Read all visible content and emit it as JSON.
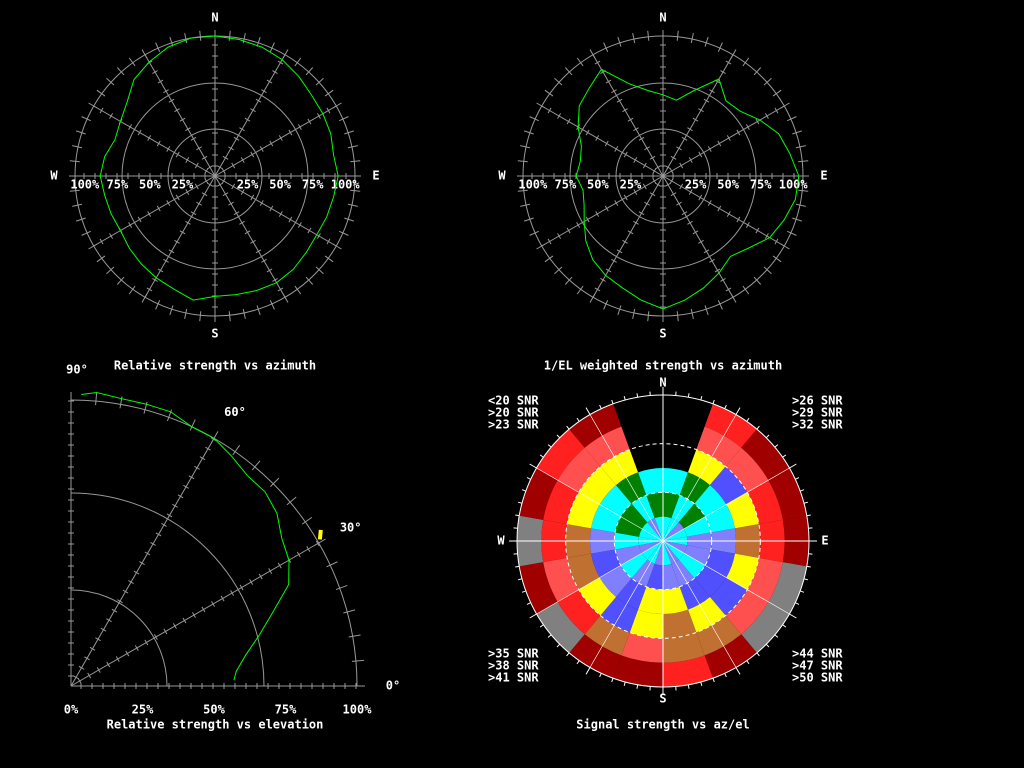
{
  "chart_data": [
    {
      "type": "polar",
      "title": "Relative strength vs azimuth",
      "direction_labels": [
        "N",
        "E",
        "S",
        "W"
      ],
      "rticks": [
        {
          "value": 25,
          "label": "25%"
        },
        {
          "value": 50,
          "label": "50%"
        },
        {
          "value": 75,
          "label": "75%"
        },
        {
          "value": 100,
          "label": "100%"
        }
      ],
      "rlim": [
        0,
        100
      ],
      "color": "#00ff00",
      "x": [
        0,
        10,
        20,
        30,
        40,
        50,
        60,
        70,
        80,
        90,
        100,
        110,
        120,
        130,
        140,
        150,
        160,
        170,
        180,
        190,
        200,
        210,
        220,
        230,
        240,
        250,
        260,
        270,
        280,
        290,
        300,
        310,
        320,
        330,
        340,
        350
      ],
      "values": [
        100,
        99,
        98,
        96,
        93,
        90,
        89,
        88,
        86,
        88,
        86,
        85,
        84,
        85,
        87,
        88,
        87,
        86,
        86,
        90,
        86,
        84,
        82,
        80,
        78,
        79,
        80,
        82,
        80,
        76,
        78,
        82,
        90,
        94,
        98,
        100
      ]
    },
    {
      "type": "polar",
      "title": "1/EL weighted strength vs azimuth",
      "direction_labels": [
        "N",
        "E",
        "S",
        "W"
      ],
      "rticks": [
        {
          "value": 25,
          "label": "25%"
        },
        {
          "value": 50,
          "label": "50%"
        },
        {
          "value": 75,
          "label": "75%"
        },
        {
          "value": 100,
          "label": "100%"
        }
      ],
      "rlim": [
        0,
        100
      ],
      "color": "#00ff00",
      "x": [
        0,
        10,
        20,
        30,
        40,
        50,
        60,
        70,
        80,
        90,
        100,
        110,
        120,
        130,
        140,
        150,
        160,
        170,
        180,
        190,
        200,
        210,
        220,
        230,
        240,
        250,
        260,
        270,
        280,
        290,
        300,
        310,
        320,
        330,
        340,
        350
      ],
      "values": [
        58,
        55,
        65,
        80,
        70,
        72,
        80,
        88,
        92,
        97,
        96,
        92,
        88,
        80,
        75,
        80,
        85,
        90,
        95,
        90,
        85,
        82,
        78,
        72,
        65,
        60,
        58,
        62,
        60,
        62,
        70,
        78,
        82,
        88,
        70,
        62
      ]
    },
    {
      "type": "elevation",
      "title": "Relative strength vs elevation",
      "xticks": [
        {
          "value": 0,
          "label": "0°"
        },
        {
          "value": 30,
          "label": "30°"
        },
        {
          "value": 60,
          "label": "60°"
        },
        {
          "value": 90,
          "label": "90°"
        }
      ],
      "rticks": [
        {
          "value": 0,
          "label": "0%"
        },
        {
          "value": 25,
          "label": "25%"
        },
        {
          "value": 50,
          "label": "50%"
        },
        {
          "value": 75,
          "label": "75%"
        },
        {
          "value": 100,
          "label": "100%"
        }
      ],
      "rlim": [
        0,
        100
      ],
      "series": [
        {
          "color": "#00ff00",
          "x": [
            2,
            5,
            10,
            15,
            20,
            25,
            30,
            35,
            40,
            45,
            50,
            55,
            60,
            65,
            70,
            75,
            80,
            85,
            88
          ],
          "values": [
            57,
            58,
            62,
            68,
            75,
            84,
            88,
            90,
            94,
            96,
            96,
            98,
            100,
            100,
            102,
            102,
            102,
            103,
            102
          ]
        },
        {
          "color": "#ffff00",
          "x": [
            30.5,
            32
          ],
          "values": [
            101,
            103
          ]
        }
      ]
    },
    {
      "type": "skyplot",
      "title": "Signal strength vs az/el",
      "direction_labels": [
        "N",
        "E",
        "S",
        "W"
      ],
      "azimuth_bins": [
        0,
        20,
        40,
        60,
        80,
        100,
        120,
        140,
        160,
        180,
        200,
        220,
        240,
        260,
        280,
        300,
        320,
        340,
        360
      ],
      "elevation_bins": [
        0,
        15,
        30,
        45,
        60,
        75,
        90
      ],
      "thresholds": [
        20,
        23,
        26,
        29,
        32,
        35,
        38,
        41,
        44,
        47,
        50
      ],
      "levels": [
        {
          "name": "<20 SNR",
          "color": "#808080"
        },
        {
          "name": ">20 SNR",
          "color": "#a00000"
        },
        {
          "name": ">23 SNR",
          "color": "#ff2020"
        },
        {
          "name": ">26 SNR",
          "color": "#ff5050"
        },
        {
          "name": ">29 SNR",
          "color": "#c07030"
        },
        {
          "name": ">32 SNR",
          "color": "#ffff00"
        },
        {
          "name": ">35 SNR",
          "color": "#5050ff"
        },
        {
          "name": ">38 SNR",
          "color": "#8080ff"
        },
        {
          "name": ">41 SNR",
          "color": "#00ffff"
        },
        {
          "name": ">44 SNR",
          "color": "#008000"
        },
        {
          "name": ">47 SNR",
          "color": "#00ff00"
        },
        {
          "name": ">50 SNR",
          "color": "#c0c0c0"
        }
      ],
      "values": [
        [
          null,
          24,
          22,
          21,
          23,
          20,
          19,
          22,
          24,
          23,
          21,
          20,
          22,
          19,
          21,
          24,
          22,
          null
        ],
        [
          null,
          28,
          27,
          25,
          26,
          29,
          27,
          30,
          31,
          28,
          30,
          26,
          27,
          25,
          24,
          27,
          29,
          null
        ],
        [
          null,
          33,
          36,
          34,
          32,
          35,
          37,
          33,
          31,
          34,
          36,
          33,
          30,
          32,
          35,
          34,
          33,
          null
        ],
        [
          43,
          45,
          42,
          44,
          39,
          37,
          38,
          36,
          35,
          33,
          37,
          39,
          38,
          40,
          42,
          44,
          45,
          42
        ],
        [
          46,
          44,
          45,
          42,
          41,
          40,
          42,
          39,
          41,
          38,
          40,
          42,
          41,
          43,
          45,
          47,
          44,
          46
        ],
        [
          42,
          43,
          41,
          42,
          44,
          41,
          42,
          40,
          42,
          41,
          43,
          42,
          41,
          44,
          42,
          43,
          41,
          42
        ]
      ]
    }
  ]
}
